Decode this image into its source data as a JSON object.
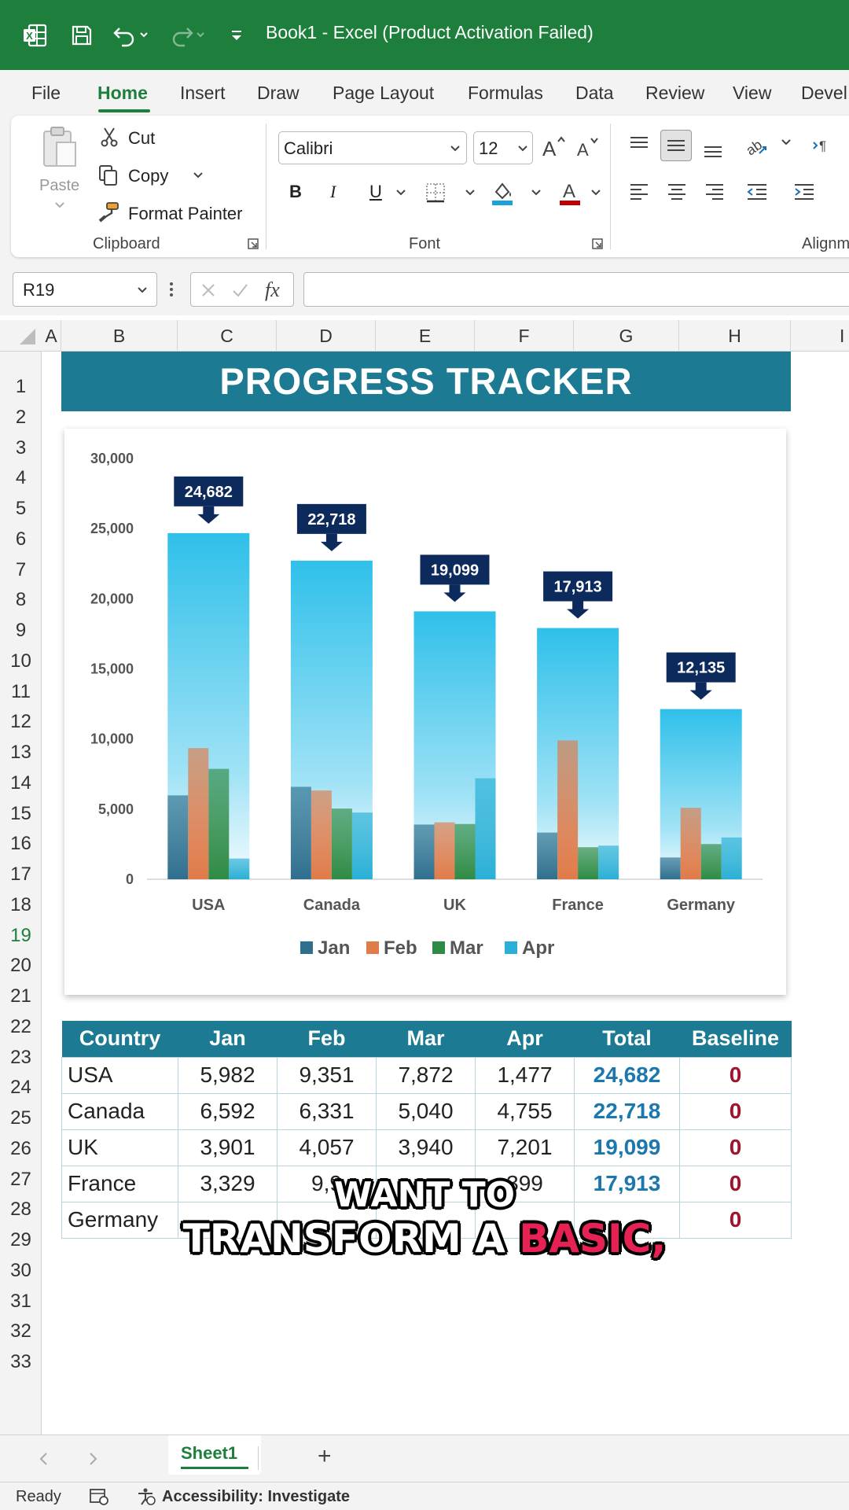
{
  "window": {
    "title": "Book1  -  Excel (Product Activation Failed)",
    "accent": "#1e7f3d"
  },
  "quick_access": {
    "icons": [
      "excel-logo-icon",
      "save-icon",
      "undo-icon",
      "redo-icon",
      "customize-icon"
    ]
  },
  "menu": {
    "tabs": [
      "File",
      "Home",
      "Insert",
      "Draw",
      "Page Layout",
      "Formulas",
      "Data",
      "Review",
      "View",
      "Devel"
    ],
    "active": "Home"
  },
  "ribbon": {
    "clipboard": {
      "paste": "Paste",
      "cut": "Cut",
      "copy": "Copy",
      "format_painter": "Format Painter",
      "label": "Clipboard"
    },
    "font": {
      "family": "Calibri",
      "size": "12",
      "bold": "B",
      "italic": "I",
      "underline": "U",
      "label": "Font"
    },
    "alignment": {
      "label": "Alignm"
    }
  },
  "formula_bar": {
    "name_box": "R19",
    "fx": "fx",
    "value": ""
  },
  "grid": {
    "columns": [
      "A",
      "B",
      "C",
      "D",
      "E",
      "F",
      "G",
      "H",
      "I"
    ],
    "rows": [
      "1",
      "2",
      "3",
      "4",
      "5",
      "6",
      "7",
      "8",
      "9",
      "10",
      "11",
      "12",
      "13",
      "14",
      "15",
      "16",
      "17",
      "18",
      "19",
      "20",
      "21",
      "22",
      "23",
      "24",
      "25",
      "26",
      "27",
      "28",
      "29",
      "30",
      "31",
      "32",
      "33"
    ],
    "selected_row": "19"
  },
  "sheet": {
    "banner": "PROGRESS TRACKER"
  },
  "chart_data": {
    "type": "bar",
    "title": "",
    "categories": [
      "USA",
      "Canada",
      "UK",
      "France",
      "Germany"
    ],
    "series": [
      {
        "name": "Jan",
        "values": [
          5982,
          6592,
          3901,
          3329,
          1553
        ],
        "color": "#2e6f8e"
      },
      {
        "name": "Feb",
        "values": [
          9351,
          6331,
          4057,
          9900,
          5094
        ],
        "color": "#e07b4a"
      },
      {
        "name": "Mar",
        "values": [
          7872,
          5040,
          3940,
          2286,
          2508
        ],
        "color": "#2e8b45"
      },
      {
        "name": "Apr",
        "values": [
          1477,
          4755,
          7201,
          2399,
          2980
        ],
        "color": "#2ab0d6"
      }
    ],
    "totals": [
      24682,
      22718,
      19099,
      17913,
      12135
    ],
    "total_labels": [
      "24,682",
      "22,718",
      "19,099",
      "17,913",
      "12,135"
    ],
    "total_color": "#2fc0ea",
    "label_bg": "#0d2a5c",
    "y_ticks": [
      "0",
      "5,000",
      "10,000",
      "15,000",
      "20,000",
      "25,000",
      "30,000"
    ],
    "ylim": [
      0,
      30000
    ],
    "legend_position": "bottom",
    "grid": false
  },
  "table": {
    "headers": [
      "Country",
      "Jan",
      "Feb",
      "Mar",
      "Apr",
      "Total",
      "Baseline"
    ],
    "rows": [
      [
        "USA",
        "5,982",
        "9,351",
        "7,872",
        "1,477",
        "24,682",
        "0"
      ],
      [
        "Canada",
        "6,592",
        "6,331",
        "5,040",
        "4,755",
        "22,718",
        "0"
      ],
      [
        "UK",
        "3,901",
        "4,057",
        "3,940",
        "7,201",
        "19,099",
        "0"
      ],
      [
        "France",
        "3,329",
        "9,9",
        "",
        "399",
        "17,913",
        "0"
      ],
      [
        "Germany",
        "",
        "",
        "",
        "",
        "",
        "0"
      ]
    ]
  },
  "caption": {
    "line1": "WANT TO",
    "line2_a": "TRANSFORM A ",
    "line2_b": "BASIC,"
  },
  "sheet_tabs": {
    "active": "Sheet1",
    "add": "+"
  },
  "status": {
    "ready": "Ready",
    "accessibility": "Accessibility: Investigate"
  }
}
